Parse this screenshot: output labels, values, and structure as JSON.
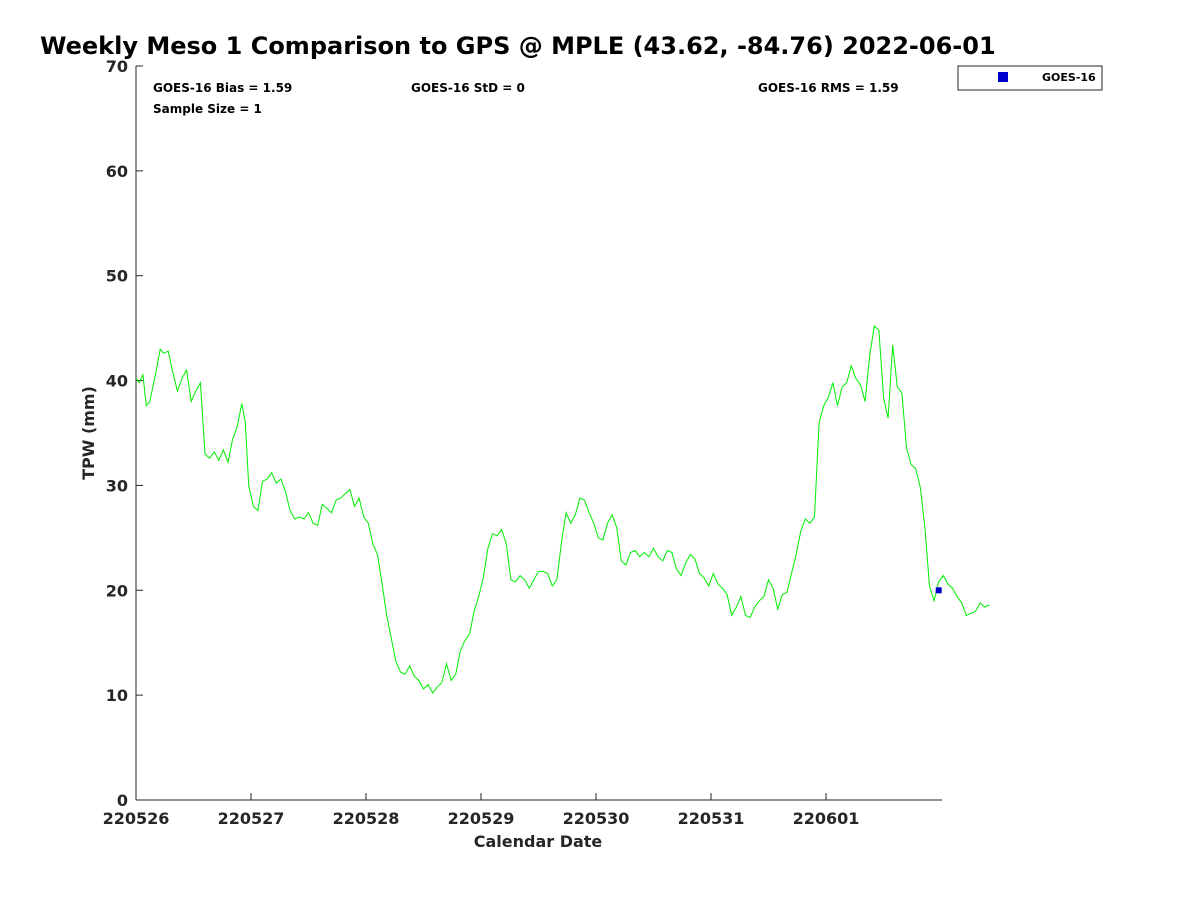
{
  "chart_data": {
    "type": "line",
    "title": "Weekly Meso 1 Comparison to GPS @ MPLE (43.62, -84.76) 2022-06-01",
    "xlabel": "Calendar Date",
    "ylabel": "TPW (mm)",
    "ylim": [
      0,
      70
    ],
    "yticks": [
      0,
      10,
      20,
      30,
      40,
      50,
      60,
      70
    ],
    "xlim": [
      0,
      6.98
    ],
    "xticks": [
      {
        "value": 0,
        "label": "220526"
      },
      {
        "value": 1,
        "label": "220527"
      },
      {
        "value": 2,
        "label": "220528"
      },
      {
        "value": 3,
        "label": "220529"
      },
      {
        "value": 4,
        "label": "220530"
      },
      {
        "value": 5,
        "label": "220531"
      },
      {
        "value": 6,
        "label": "220601"
      }
    ],
    "stats": {
      "bias": "GOES-16 Bias = 1.59",
      "std": "GOES-16 StD = 0",
      "rms": "GOES-16 RMS = 1.59",
      "sample": "Sample Size = 1"
    },
    "legend": {
      "label": "GOES-16",
      "color": "#0000cc",
      "placement": "top-right-outside"
    },
    "series": [
      {
        "name": "GPS",
        "color": "#00ee00",
        "points": [
          [
            0.0,
            40.2
          ],
          [
            0.03,
            39.8
          ],
          [
            0.06,
            40.6
          ],
          [
            0.09,
            37.6
          ],
          [
            0.12,
            38.0
          ],
          [
            0.15,
            39.6
          ],
          [
            0.18,
            41.2
          ],
          [
            0.21,
            43.0
          ],
          [
            0.24,
            42.6
          ],
          [
            0.28,
            42.8
          ],
          [
            0.32,
            40.8
          ],
          [
            0.36,
            39.0
          ],
          [
            0.4,
            40.2
          ],
          [
            0.44,
            41.0
          ],
          [
            0.48,
            38.0
          ],
          [
            0.52,
            39.0
          ],
          [
            0.56,
            39.8
          ],
          [
            0.6,
            33.0
          ],
          [
            0.64,
            32.6
          ],
          [
            0.68,
            33.2
          ],
          [
            0.72,
            32.4
          ],
          [
            0.76,
            33.4
          ],
          [
            0.8,
            32.2
          ],
          [
            0.84,
            34.4
          ],
          [
            0.88,
            35.6
          ],
          [
            0.92,
            37.8
          ],
          [
            0.95,
            36.0
          ],
          [
            0.98,
            30.0
          ],
          [
            1.02,
            28.0
          ],
          [
            1.06,
            27.6
          ],
          [
            1.1,
            30.4
          ],
          [
            1.14,
            30.6
          ],
          [
            1.18,
            31.2
          ],
          [
            1.22,
            30.2
          ],
          [
            1.26,
            30.6
          ],
          [
            1.3,
            29.4
          ],
          [
            1.34,
            27.6
          ],
          [
            1.38,
            26.8
          ],
          [
            1.42,
            27.0
          ],
          [
            1.46,
            26.8
          ],
          [
            1.5,
            27.4
          ],
          [
            1.54,
            26.4
          ],
          [
            1.58,
            26.2
          ],
          [
            1.62,
            28.2
          ],
          [
            1.66,
            27.8
          ],
          [
            1.7,
            27.4
          ],
          [
            1.74,
            28.6
          ],
          [
            1.78,
            28.8
          ],
          [
            1.82,
            29.2
          ],
          [
            1.86,
            29.6
          ],
          [
            1.9,
            28.0
          ],
          [
            1.94,
            28.8
          ],
          [
            1.98,
            27.0
          ],
          [
            2.02,
            26.4
          ],
          [
            2.06,
            24.4
          ],
          [
            2.1,
            23.4
          ],
          [
            2.14,
            20.6
          ],
          [
            2.18,
            17.6
          ],
          [
            2.22,
            15.4
          ],
          [
            2.26,
            13.2
          ],
          [
            2.3,
            12.2
          ],
          [
            2.34,
            12.0
          ],
          [
            2.38,
            12.8
          ],
          [
            2.42,
            11.8
          ],
          [
            2.46,
            11.4
          ],
          [
            2.5,
            10.6
          ],
          [
            2.54,
            11.0
          ],
          [
            2.58,
            10.2
          ],
          [
            2.62,
            10.8
          ],
          [
            2.66,
            11.2
          ],
          [
            2.7,
            13.0
          ],
          [
            2.74,
            11.4
          ],
          [
            2.78,
            12.0
          ],
          [
            2.82,
            14.2
          ],
          [
            2.86,
            15.2
          ],
          [
            2.9,
            15.8
          ],
          [
            2.94,
            18.0
          ],
          [
            2.98,
            19.4
          ],
          [
            3.02,
            21.2
          ],
          [
            3.06,
            24.0
          ],
          [
            3.1,
            25.4
          ],
          [
            3.14,
            25.2
          ],
          [
            3.18,
            25.8
          ],
          [
            3.22,
            24.4
          ],
          [
            3.26,
            21.0
          ],
          [
            3.3,
            20.8
          ],
          [
            3.34,
            21.4
          ],
          [
            3.38,
            21.0
          ],
          [
            3.42,
            20.2
          ],
          [
            3.46,
            21.0
          ],
          [
            3.5,
            21.8
          ],
          [
            3.54,
            21.8
          ],
          [
            3.58,
            21.6
          ],
          [
            3.62,
            20.4
          ],
          [
            3.66,
            21.0
          ],
          [
            3.7,
            24.6
          ],
          [
            3.74,
            27.4
          ],
          [
            3.78,
            26.4
          ],
          [
            3.82,
            27.2
          ],
          [
            3.86,
            28.8
          ],
          [
            3.9,
            28.6
          ],
          [
            3.94,
            27.4
          ],
          [
            3.98,
            26.4
          ],
          [
            4.02,
            25.0
          ],
          [
            4.06,
            24.8
          ],
          [
            4.1,
            26.4
          ],
          [
            4.14,
            27.2
          ],
          [
            4.18,
            26.0
          ],
          [
            4.22,
            22.8
          ],
          [
            4.26,
            22.4
          ],
          [
            4.3,
            23.6
          ],
          [
            4.34,
            23.8
          ],
          [
            4.38,
            23.2
          ],
          [
            4.42,
            23.6
          ],
          [
            4.46,
            23.2
          ],
          [
            4.5,
            24.0
          ],
          [
            4.54,
            23.2
          ],
          [
            4.58,
            22.8
          ],
          [
            4.62,
            23.8
          ],
          [
            4.66,
            23.6
          ],
          [
            4.7,
            22.0
          ],
          [
            4.74,
            21.4
          ],
          [
            4.78,
            22.6
          ],
          [
            4.82,
            23.4
          ],
          [
            4.86,
            23.0
          ],
          [
            4.9,
            21.6
          ],
          [
            4.94,
            21.2
          ],
          [
            4.98,
            20.4
          ],
          [
            5.02,
            21.6
          ],
          [
            5.06,
            20.6
          ],
          [
            5.1,
            20.2
          ],
          [
            5.14,
            19.6
          ],
          [
            5.18,
            17.6
          ],
          [
            5.22,
            18.4
          ],
          [
            5.26,
            19.4
          ],
          [
            5.3,
            17.6
          ],
          [
            5.34,
            17.4
          ],
          [
            5.38,
            18.4
          ],
          [
            5.42,
            19.0
          ],
          [
            5.46,
            19.4
          ],
          [
            5.5,
            21.0
          ],
          [
            5.54,
            20.2
          ],
          [
            5.58,
            18.2
          ],
          [
            5.62,
            19.6
          ],
          [
            5.66,
            19.8
          ],
          [
            5.7,
            21.6
          ],
          [
            5.74,
            23.4
          ],
          [
            5.78,
            25.6
          ],
          [
            5.82,
            26.8
          ],
          [
            5.86,
            26.4
          ],
          [
            5.9,
            27.0
          ],
          [
            5.94,
            36.0
          ],
          [
            5.98,
            37.6
          ],
          [
            6.02,
            38.4
          ],
          [
            6.06,
            39.8
          ],
          [
            6.1,
            37.6
          ],
          [
            6.14,
            39.4
          ],
          [
            6.18,
            39.8
          ],
          [
            6.22,
            41.4
          ],
          [
            6.26,
            40.2
          ],
          [
            6.3,
            39.6
          ],
          [
            6.34,
            38.0
          ],
          [
            6.38,
            42.4
          ],
          [
            6.42,
            45.2
          ],
          [
            6.46,
            44.8
          ],
          [
            6.5,
            38.4
          ],
          [
            6.54,
            36.4
          ],
          [
            6.58,
            43.4
          ],
          [
            6.62,
            39.4
          ],
          [
            6.66,
            38.8
          ],
          [
            6.7,
            33.6
          ],
          [
            6.74,
            32.0
          ],
          [
            6.78,
            31.6
          ],
          [
            6.82,
            29.8
          ],
          [
            6.86,
            26.0
          ],
          [
            6.9,
            20.4
          ],
          [
            6.94,
            19.0
          ],
          [
            6.98,
            20.8
          ],
          [
            7.02,
            21.4
          ],
          [
            7.06,
            20.6
          ],
          [
            7.1,
            20.2
          ],
          [
            7.14,
            19.4
          ],
          [
            7.18,
            18.8
          ],
          [
            7.22,
            17.6
          ],
          [
            7.26,
            17.8
          ],
          [
            7.3,
            18.0
          ],
          [
            7.34,
            18.8
          ],
          [
            7.38,
            18.4
          ],
          [
            7.42,
            18.6
          ]
        ]
      },
      {
        "name": "GOES-16",
        "color": "#0000cc",
        "marker": "square",
        "points": [
          [
            6.98,
            20.0
          ]
        ]
      }
    ]
  }
}
